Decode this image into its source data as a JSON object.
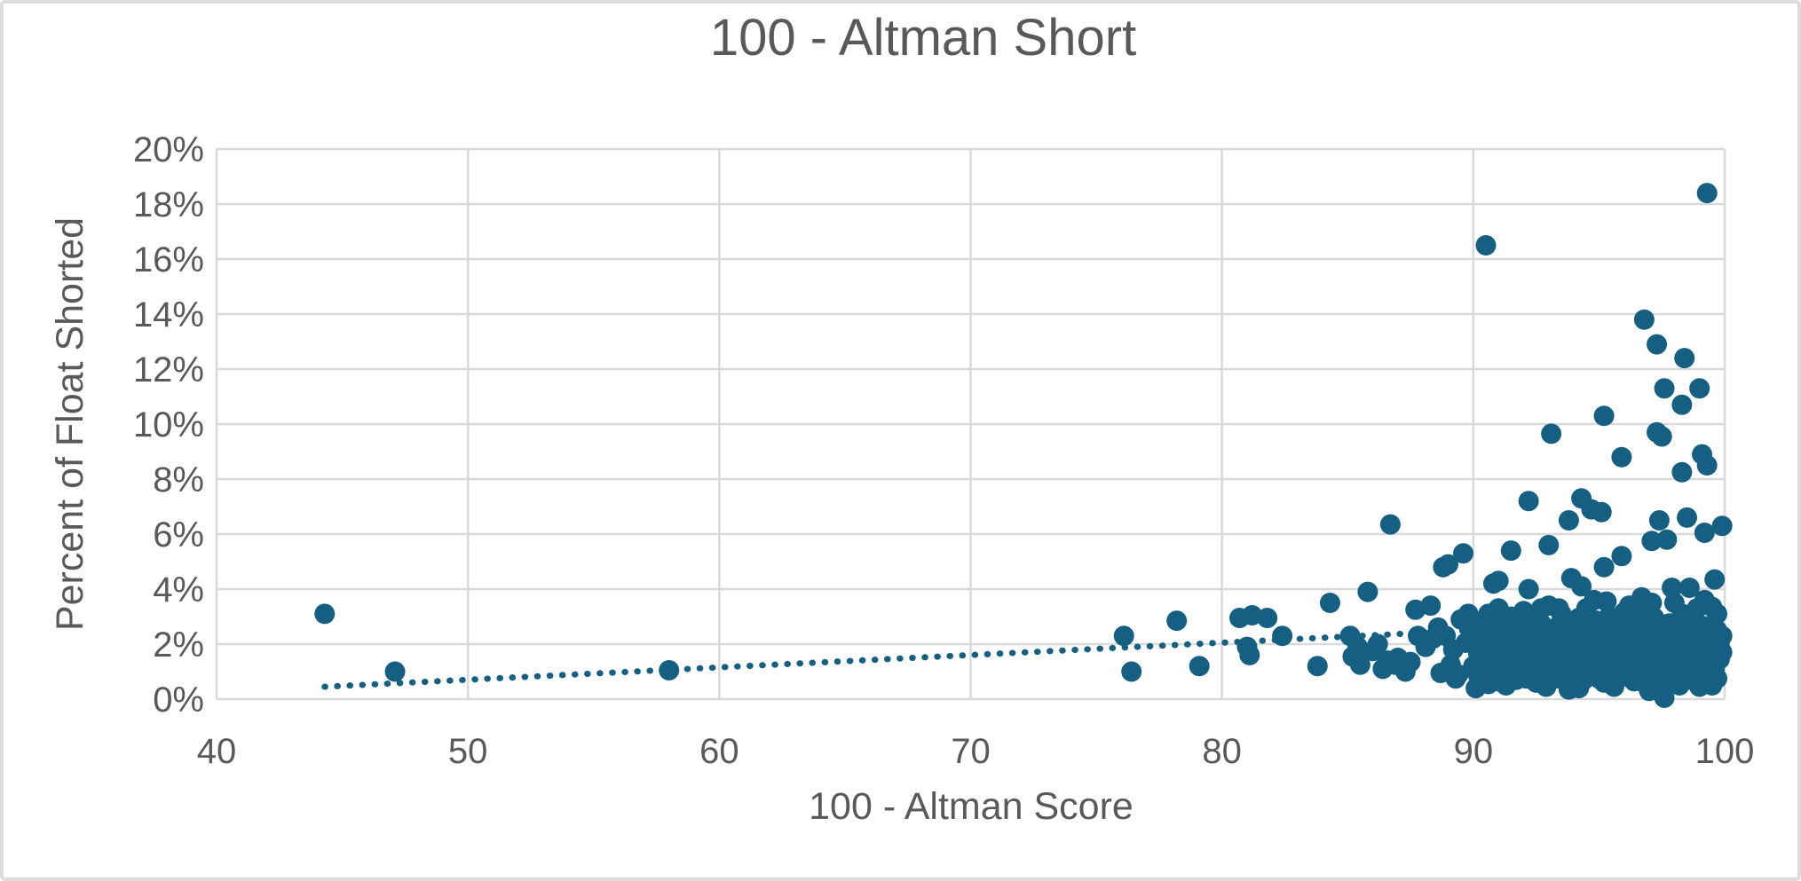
{
  "chart_data": {
    "type": "scatter",
    "title": "100 - Altman Short",
    "xlabel": "100 - Altman Score",
    "ylabel": "Percent of Float Shorted",
    "xlim": [
      40,
      100
    ],
    "ylim": [
      0,
      20
    ],
    "x_tick_values": [
      40,
      50,
      60,
      70,
      80,
      90,
      100
    ],
    "x_tick_labels": [
      "40",
      "50",
      "60",
      "70",
      "80",
      "90",
      "100"
    ],
    "y_tick_values": [
      0,
      2,
      4,
      6,
      8,
      10,
      12,
      14,
      16,
      18,
      20
    ],
    "y_tick_labels": [
      "0%",
      "2%",
      "4%",
      "6%",
      "8%",
      "10%",
      "12%",
      "14%",
      "16%",
      "18%",
      "20%"
    ],
    "grid": true,
    "legend": false,
    "colors": {
      "marker": "#156082",
      "trendline": "#156082",
      "gridline": "#d9d9d9",
      "text": "#595959",
      "background": "#ffffff",
      "frame_border": "#dcdcdc"
    },
    "trendline": {
      "type": "linear",
      "style": "dotted",
      "x1": 44.3,
      "y1": 0.45,
      "x2": 100,
      "y2": 2.95
    },
    "series": [
      {
        "name": "Percent of Float Shorted vs 100 - Altman Score",
        "marker": "circle",
        "points": [
          [
            44.3,
            3.1
          ],
          [
            47.1,
            1.0
          ],
          [
            58.0,
            1.05
          ],
          [
            76.1,
            2.3
          ],
          [
            76.4,
            1.0
          ],
          [
            78.2,
            2.85
          ],
          [
            79.1,
            1.2
          ],
          [
            80.7,
            2.95
          ],
          [
            81.2,
            3.05
          ],
          [
            81.8,
            2.95
          ],
          [
            81.0,
            1.9
          ],
          [
            81.1,
            1.6
          ],
          [
            82.4,
            2.3
          ],
          [
            83.8,
            1.2
          ],
          [
            84.3,
            3.5
          ],
          [
            85.1,
            2.3
          ],
          [
            85.4,
            1.9
          ],
          [
            85.2,
            1.55
          ],
          [
            85.5,
            1.25
          ],
          [
            85.8,
            3.9
          ],
          [
            86.0,
            1.75
          ],
          [
            86.2,
            2.0
          ],
          [
            86.4,
            1.1
          ],
          [
            86.6,
            1.4
          ],
          [
            86.7,
            6.35
          ],
          [
            86.9,
            1.25
          ],
          [
            87.0,
            1.5
          ],
          [
            87.3,
            1.0
          ],
          [
            87.5,
            1.35
          ],
          [
            87.7,
            3.25
          ],
          [
            87.8,
            2.3
          ],
          [
            88.3,
            3.4
          ],
          [
            88.4,
            2.2
          ],
          [
            88.9,
            2.3
          ],
          [
            90.5,
            16.5
          ],
          [
            99.3,
            18.4
          ],
          [
            96.8,
            13.8
          ],
          [
            97.3,
            12.9
          ],
          [
            98.4,
            12.4
          ],
          [
            97.6,
            11.3
          ],
          [
            99.0,
            11.3
          ],
          [
            98.3,
            10.7
          ],
          [
            95.2,
            10.3
          ],
          [
            93.1,
            9.65
          ],
          [
            97.3,
            9.7
          ],
          [
            97.5,
            9.55
          ],
          [
            95.9,
            8.8
          ],
          [
            99.1,
            8.9
          ],
          [
            99.3,
            8.5
          ],
          [
            98.3,
            8.25
          ],
          [
            92.2,
            7.2
          ],
          [
            94.3,
            7.3
          ],
          [
            94.7,
            6.9
          ],
          [
            95.1,
            6.8
          ],
          [
            93.8,
            6.5
          ],
          [
            97.4,
            6.5
          ],
          [
            98.5,
            6.6
          ],
          [
            99.2,
            6.05
          ],
          [
            99.9,
            6.3
          ],
          [
            97.7,
            5.8
          ],
          [
            97.1,
            5.75
          ],
          [
            93.0,
            5.6
          ],
          [
            95.9,
            5.2
          ],
          [
            91.5,
            5.4
          ],
          [
            89.6,
            5.3
          ],
          [
            88.8,
            4.8
          ],
          [
            89.0,
            4.9
          ],
          [
            95.2,
            4.8
          ],
          [
            90.8,
            4.2
          ],
          [
            92.2,
            4.0
          ],
          [
            93.9,
            4.4
          ],
          [
            94.3,
            4.1
          ],
          [
            98.6,
            4.05
          ],
          [
            97.9,
            4.05
          ],
          [
            99.6,
            4.35
          ],
          [
            91.0,
            4.3
          ],
          [
            93.0,
            3.4
          ],
          [
            89.8,
            3.1
          ],
          [
            89.9,
            2.6
          ],
          [
            89.4,
            0.9
          ],
          [
            89.1,
            1.25
          ],
          [
            89.5,
            2.9
          ],
          [
            89.2,
            1.8
          ],
          [
            88.7,
            0.95
          ],
          [
            88.1,
            1.9
          ],
          [
            88.6,
            2.6
          ],
          [
            89.3,
            0.75
          ],
          [
            89.7,
            2.05
          ],
          [
            90.1,
            0.4
          ],
          [
            90.0,
            1.2
          ],
          [
            90.1,
            2.1
          ],
          [
            90.2,
            0.85
          ],
          [
            90.2,
            1.65
          ],
          [
            90.3,
            2.8
          ],
          [
            90.3,
            1.1
          ],
          [
            90.4,
            1.95
          ],
          [
            90.4,
            0.7
          ],
          [
            90.5,
            2.35
          ],
          [
            90.5,
            1.5
          ],
          [
            90.6,
            3.1
          ],
          [
            90.6,
            1.0
          ],
          [
            90.7,
            1.8
          ],
          [
            90.7,
            2.55
          ],
          [
            90.8,
            0.9
          ],
          [
            90.8,
            1.35
          ],
          [
            90.9,
            2.2
          ],
          [
            90.9,
            1.6
          ],
          [
            91.0,
            3.3
          ],
          [
            91.0,
            0.65
          ],
          [
            91.1,
            1.45
          ],
          [
            91.1,
            2.0
          ],
          [
            91.2,
            0.8
          ],
          [
            91.2,
            2.7
          ],
          [
            91.3,
            1.15
          ],
          [
            91.3,
            1.75
          ],
          [
            91.4,
            2.4
          ],
          [
            91.4,
            0.95
          ],
          [
            91.5,
            1.55
          ],
          [
            91.5,
            3.0
          ],
          [
            91.6,
            1.05
          ],
          [
            91.6,
            2.15
          ],
          [
            91.7,
            0.7
          ],
          [
            91.7,
            1.85
          ],
          [
            91.8,
            2.6
          ],
          [
            91.8,
            1.3
          ],
          [
            91.9,
            0.9
          ],
          [
            91.9,
            2.0
          ],
          [
            92.0,
            1.6
          ],
          [
            92.0,
            3.2
          ],
          [
            92.1,
            0.75
          ],
          [
            92.1,
            1.9
          ],
          [
            92.2,
            2.5
          ],
          [
            92.2,
            1.2
          ],
          [
            92.3,
            0.95
          ],
          [
            92.3,
            2.1
          ],
          [
            92.4,
            1.5
          ],
          [
            92.4,
            2.9
          ],
          [
            92.5,
            0.6
          ],
          [
            92.5,
            1.75
          ],
          [
            92.6,
            2.3
          ],
          [
            92.6,
            1.05
          ],
          [
            92.7,
            1.6
          ],
          [
            92.7,
            2.75
          ],
          [
            92.8,
            0.85
          ],
          [
            92.8,
            1.95
          ],
          [
            92.9,
            1.35
          ],
          [
            92.9,
            2.2
          ],
          [
            93.0,
            0.7
          ],
          [
            93.0,
            1.7
          ],
          [
            93.1,
            2.45
          ],
          [
            93.1,
            1.1
          ],
          [
            93.2,
            1.85
          ],
          [
            93.2,
            0.9
          ],
          [
            93.3,
            2.6
          ],
          [
            93.3,
            1.45
          ],
          [
            93.4,
            2.05
          ],
          [
            93.4,
            0.75
          ],
          [
            93.5,
            1.25
          ],
          [
            93.5,
            3.1
          ],
          [
            93.6,
            1.65
          ],
          [
            93.6,
            2.3
          ],
          [
            93.7,
            0.95
          ],
          [
            93.7,
            1.95
          ],
          [
            93.8,
            2.8
          ],
          [
            93.8,
            1.15
          ],
          [
            93.9,
            1.5
          ],
          [
            93.9,
            0.65
          ],
          [
            94.0,
            2.15
          ],
          [
            94.0,
            1.35
          ],
          [
            94.1,
            2.5
          ],
          [
            94.1,
            0.85
          ],
          [
            94.2,
            1.7
          ],
          [
            94.2,
            2.95
          ],
          [
            94.3,
            1.05
          ],
          [
            94.3,
            2.25
          ],
          [
            94.4,
            1.45
          ],
          [
            94.4,
            0.7
          ],
          [
            94.5,
            1.9
          ],
          [
            94.5,
            3.3
          ],
          [
            94.6,
            1.2
          ],
          [
            94.6,
            2.6
          ],
          [
            94.7,
            0.9
          ],
          [
            94.7,
            1.55
          ],
          [
            94.8,
            2.1
          ],
          [
            94.8,
            1.0
          ],
          [
            94.9,
            2.85
          ],
          [
            94.9,
            1.65
          ],
          [
            95.0,
            0.75
          ],
          [
            95.0,
            2.3
          ],
          [
            95.1,
            1.35
          ],
          [
            95.1,
            1.95
          ],
          [
            95.2,
            2.7
          ],
          [
            95.2,
            0.6
          ],
          [
            95.3,
            1.5
          ],
          [
            95.3,
            2.2
          ],
          [
            95.4,
            1.0
          ],
          [
            95.4,
            3.0
          ],
          [
            95.5,
            1.75
          ],
          [
            95.5,
            0.85
          ],
          [
            95.6,
            2.4
          ],
          [
            95.6,
            1.25
          ],
          [
            95.7,
            1.85
          ],
          [
            95.7,
            0.7
          ],
          [
            95.8,
            2.55
          ],
          [
            95.8,
            1.4
          ],
          [
            95.9,
            2.0
          ],
          [
            95.9,
            1.1
          ],
          [
            96.0,
            3.15
          ],
          [
            96.0,
            0.9
          ],
          [
            96.1,
            1.6
          ],
          [
            96.1,
            2.25
          ],
          [
            96.2,
            0.8
          ],
          [
            96.2,
            1.95
          ],
          [
            96.3,
            2.65
          ],
          [
            96.3,
            1.2
          ],
          [
            96.4,
            1.7
          ],
          [
            96.4,
            0.65
          ],
          [
            96.5,
            2.35
          ],
          [
            96.5,
            1.45
          ],
          [
            96.6,
            3.0
          ],
          [
            96.6,
            1.0
          ],
          [
            96.7,
            1.8
          ],
          [
            96.7,
            2.5
          ],
          [
            96.8,
            0.9
          ],
          [
            96.8,
            1.55
          ],
          [
            96.9,
            2.15
          ],
          [
            96.9,
            1.25
          ],
          [
            97.0,
            0.75
          ],
          [
            97.0,
            1.9
          ],
          [
            97.1,
            2.6
          ],
          [
            97.1,
            1.1
          ],
          [
            97.2,
            1.65
          ],
          [
            97.2,
            2.95
          ],
          [
            97.3,
            0.85
          ],
          [
            97.3,
            2.05
          ],
          [
            97.4,
            1.4
          ],
          [
            97.4,
            0.6
          ],
          [
            97.5,
            1.8
          ],
          [
            97.5,
            2.4
          ],
          [
            97.6,
            0.05
          ],
          [
            97.6,
            1.15
          ],
          [
            97.7,
            2.2
          ],
          [
            97.7,
            0.95
          ],
          [
            97.8,
            1.6
          ],
          [
            97.8,
            2.75
          ],
          [
            97.9,
            1.3
          ],
          [
            97.9,
            0.7
          ],
          [
            98.0,
            1.95
          ],
          [
            98.0,
            2.5
          ],
          [
            98.1,
            1.05
          ],
          [
            98.1,
            1.7
          ],
          [
            98.2,
            2.3
          ],
          [
            98.2,
            0.85
          ],
          [
            98.3,
            1.5
          ],
          [
            98.3,
            3.1
          ],
          [
            98.4,
            1.2
          ],
          [
            98.4,
            2.0
          ],
          [
            98.5,
            0.7
          ],
          [
            98.5,
            1.85
          ],
          [
            98.6,
            2.55
          ],
          [
            98.6,
            1.35
          ],
          [
            98.7,
            0.95
          ],
          [
            98.7,
            2.1
          ],
          [
            98.8,
            1.6
          ],
          [
            98.8,
            2.85
          ],
          [
            98.9,
            1.15
          ],
          [
            98.9,
            1.9
          ],
          [
            99.0,
            0.8
          ],
          [
            99.0,
            2.35
          ],
          [
            99.1,
            1.5
          ],
          [
            99.1,
            2.0
          ],
          [
            99.2,
            1.05
          ],
          [
            99.2,
            2.65
          ],
          [
            99.3,
            1.4
          ],
          [
            99.3,
            1.8
          ],
          [
            99.4,
            0.9
          ],
          [
            99.4,
            2.2
          ],
          [
            99.5,
            1.6
          ],
          [
            99.5,
            3.35
          ],
          [
            99.6,
            1.1
          ],
          [
            99.6,
            1.95
          ],
          [
            99.7,
            2.5
          ],
          [
            99.7,
            0.75
          ],
          [
            99.8,
            1.45
          ],
          [
            99.8,
            2.05
          ],
          [
            99.9,
            1.7
          ],
          [
            99.9,
            2.3
          ],
          [
            99.5,
            0.5
          ],
          [
            99.2,
            3.6
          ],
          [
            95.3,
            3.55
          ],
          [
            96.2,
            3.4
          ],
          [
            97.1,
            3.5
          ],
          [
            93.4,
            3.3
          ],
          [
            94.8,
            3.6
          ],
          [
            96.7,
            3.7
          ],
          [
            98.0,
            3.5
          ],
          [
            98.9,
            3.3
          ],
          [
            99.7,
            3.1
          ],
          [
            92.7,
            3.3
          ],
          [
            91.3,
            0.5
          ],
          [
            92.9,
            0.45
          ],
          [
            94.2,
            0.4
          ],
          [
            95.6,
            0.45
          ],
          [
            96.9,
            0.5
          ],
          [
            98.2,
            0.5
          ],
          [
            90.6,
            0.55
          ],
          [
            93.8,
            0.35
          ],
          [
            97.0,
            0.3
          ],
          [
            99.0,
            0.45
          ]
        ]
      }
    ]
  }
}
